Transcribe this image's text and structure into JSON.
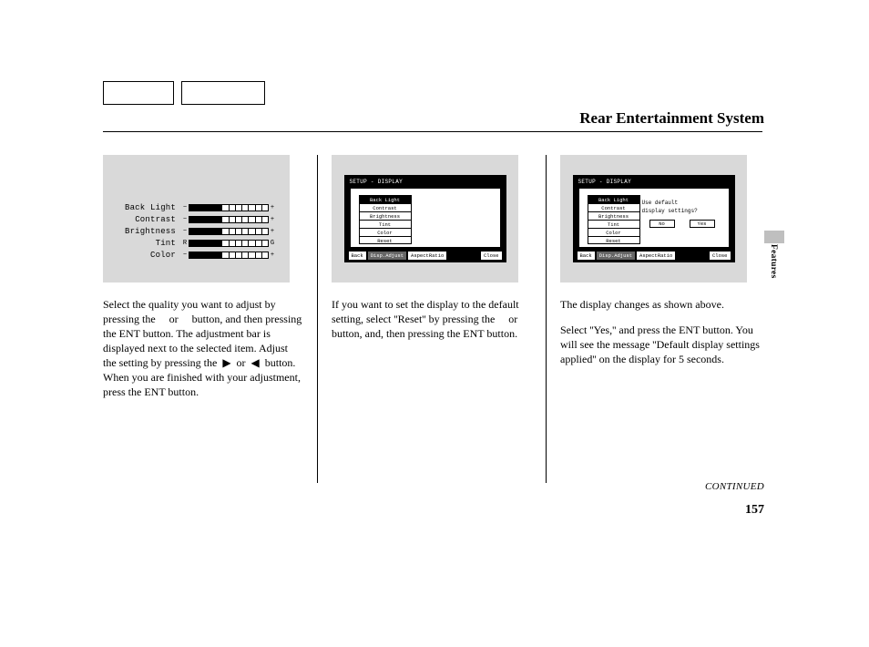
{
  "title": "Rear Entertainment System",
  "side_label": "Features",
  "continued": "CONTINUED",
  "page_number": "157",
  "fig1": {
    "labels": [
      "Back Light",
      "Contrast",
      "Brightness",
      "Tint",
      "Color"
    ],
    "left_caps": [
      "−",
      "−",
      "−",
      "R",
      "−"
    ],
    "right_caps": [
      "+",
      "+",
      "+",
      "G",
      "+"
    ],
    "fill": [
      5,
      5,
      5,
      5,
      5
    ],
    "total_segs": 12
  },
  "screen2": {
    "title": "SETUP - DISPLAY",
    "menu": [
      "Back Light",
      "Contrast",
      "Brightness",
      "Tint",
      "Color",
      "Reset"
    ],
    "footer": [
      "Back",
      "Disp.Adjust",
      "AspectRatio",
      "Close"
    ]
  },
  "screen3": {
    "title": "SETUP - DISPLAY",
    "menu": [
      "Back Light",
      "Contrast",
      "Brightness",
      "Tint",
      "Color",
      "Reset"
    ],
    "prompt_l1": "Use default",
    "prompt_l2": "display settings?",
    "btn_no": "No",
    "btn_yes": "Yes",
    "footer": [
      "Back",
      "Disp.Adjust",
      "AspectRatio",
      "Close"
    ]
  },
  "col1_text": "Select the quality you want to adjust by pressing the     or     button, and then pressing the ENT button. The adjustment bar is displayed next to the selected item. Adjust the setting by pressing the  ▶  or  ◀  button. When you are finished with your adjustment, press the ENT button.",
  "col2_text": "If you want to set the display to the default setting, select ''Reset'' by pressing the     or     button, and, then pressing the ENT button.",
  "col3_p1": "The display changes as shown above.",
  "col3_p2": "Select ''Yes,'' and press the ENT button. You will see the message ''Default display settings applied'' on the display for 5 seconds."
}
